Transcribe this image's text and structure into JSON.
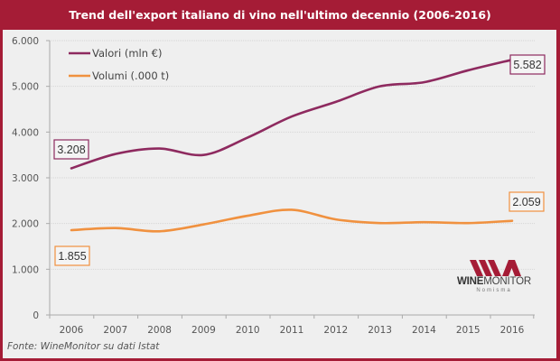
{
  "header": {
    "title": "Trend dell'export italiano di vino nell'ultimo decennio (2006-2016)"
  },
  "footer": {
    "source": "Fonte: WineMonitor su dati Istat"
  },
  "logo": {
    "brand_bold": "WINE",
    "brand_light": "MONITOR",
    "sub": "Nomisma"
  },
  "colors": {
    "title_bg": "#a51c36",
    "valori": "#8e2a5f",
    "volumi": "#f0913f",
    "logo": "#a51c36"
  },
  "chart_data": {
    "type": "line",
    "title": "Trend dell'export italiano di vino nell'ultimo decennio (2006-2016)",
    "xlabel": "",
    "ylabel": "",
    "x": [
      "2006",
      "2007",
      "2008",
      "2009",
      "2010",
      "2011",
      "2012",
      "2013",
      "2014",
      "2015",
      "2016"
    ],
    "ylim": [
      0,
      6000
    ],
    "yticks": [
      0,
      1000,
      2000,
      3000,
      4000,
      5000,
      6000
    ],
    "ytick_labels": [
      "0",
      "1.000",
      "2.000",
      "3.000",
      "4.000",
      "5.000",
      "6.000"
    ],
    "grid": true,
    "legend": "top-left",
    "series": [
      {
        "name": "Valori (mln €)",
        "values": [
          3208,
          3520,
          3640,
          3500,
          3880,
          4340,
          4660,
          5000,
          5090,
          5350,
          5582
        ]
      },
      {
        "name": "Volumi (.000 t)",
        "values": [
          1855,
          1900,
          1830,
          1980,
          2170,
          2300,
          2090,
          2010,
          2030,
          2010,
          2059
        ]
      }
    ],
    "annotations": [
      {
        "series": 0,
        "x": "2006",
        "label": "3.208"
      },
      {
        "series": 0,
        "x": "2016",
        "label": "5.582"
      },
      {
        "series": 1,
        "x": "2006",
        "label": "1.855"
      },
      {
        "series": 1,
        "x": "2016",
        "label": "2.059"
      }
    ]
  }
}
